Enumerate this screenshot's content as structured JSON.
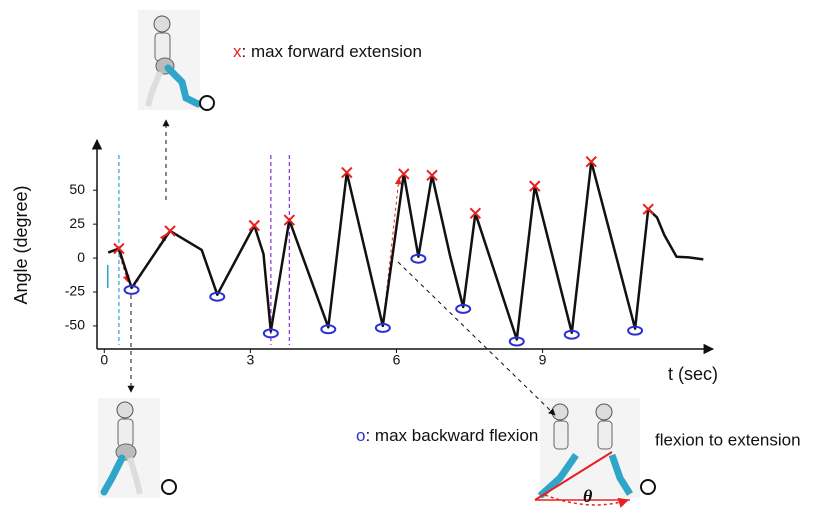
{
  "chart_data": {
    "type": "line",
    "y_label": "Angle  (degree)",
    "x_label": "t (sec)",
    "xlim": [
      -0.15,
      12.5
    ],
    "ylim": [
      -67,
      87
    ],
    "xticks": [
      0,
      3,
      6,
      9
    ],
    "yticks": [
      -50,
      -25,
      0,
      25,
      50
    ],
    "line": {
      "color": "#111111",
      "x": [
        0.08,
        0.3,
        0.56,
        1.35,
        2.0,
        2.32,
        3.08,
        3.27,
        3.42,
        3.8,
        4.6,
        4.98,
        5.72,
        6.15,
        6.45,
        6.73,
        7.1,
        7.37,
        7.62,
        7.93,
        8.47,
        8.84,
        9.6,
        10.0,
        10.9,
        11.17,
        11.35,
        11.5,
        11.75,
        12.0,
        12.3
      ],
      "values": [
        4,
        7,
        -22,
        20,
        6,
        -27,
        24,
        3,
        -54,
        28,
        -51,
        63,
        -50,
        62,
        1,
        61,
        2,
        -36,
        33,
        -1,
        -60,
        53,
        -55,
        71,
        -52,
        36,
        30,
        17,
        1,
        0.5,
        -1
      ]
    },
    "maxima": {
      "marker": "x",
      "color": "#e8201e",
      "x": [
        0.3,
        1.35,
        3.08,
        3.8,
        4.98,
        6.15,
        6.73,
        7.62,
        8.84,
        10.0,
        11.17
      ],
      "values": [
        7,
        20,
        24,
        28,
        63,
        62,
        61,
        33,
        53,
        71,
        36
      ]
    },
    "minima": {
      "marker": "o",
      "color": "#2a2fd6",
      "x": [
        0.56,
        2.32,
        3.42,
        4.6,
        5.72,
        6.45,
        7.37,
        8.47,
        9.6,
        10.9
      ],
      "values": [
        -22,
        -27,
        -54,
        -51,
        -50,
        1,
        -36,
        -60,
        -55,
        -52
      ]
    },
    "vlines": [
      {
        "x": 0.3,
        "color": "#29a3d6"
      },
      {
        "x": 3.42,
        "color": "#8a2be2"
      },
      {
        "x": 3.8,
        "color": "#8a2be2"
      }
    ],
    "annotations": {
      "max_symbol": "x",
      "max_text": ": max forward extension",
      "min_symbol": "o",
      "min_text": ": max backward flexion",
      "flexion_text": "flexion to extension",
      "theta": "θ"
    }
  }
}
